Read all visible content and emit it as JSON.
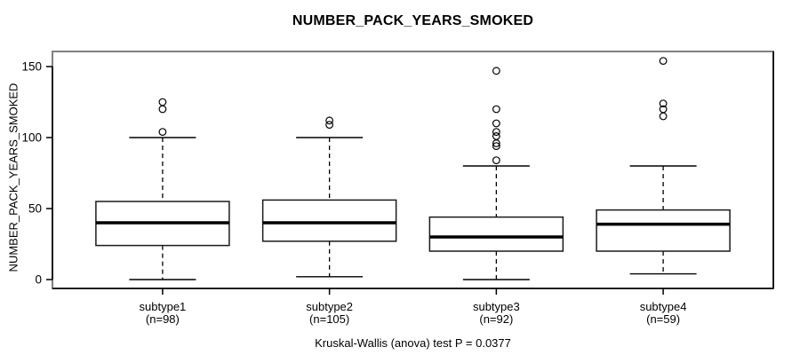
{
  "chart_data": {
    "type": "boxplot",
    "title": "NUMBER_PACK_YEARS_SMOKED",
    "ylabel": "NUMBER_PACK_YEARS_SMOKED",
    "xlabel": "",
    "caption": "Kruskal-Wallis (anova) test P = 0.0377",
    "yticks": [
      0,
      50,
      100,
      150
    ],
    "ylim": [
      -6,
      161
    ],
    "grid": false,
    "colors": {
      "box_border": "#1a1a1a",
      "median_line": "#000000",
      "whisker_line": "#000000",
      "outlier_stroke": "#000000",
      "plot_frame": "#808080",
      "axis_line": "#000000",
      "background": "#ffffff"
    },
    "groups": [
      {
        "label": "subtype1",
        "n_label": "(n=98)",
        "whisker_low": 0,
        "q1": 24,
        "median": 40,
        "q3": 55,
        "whisker_high": 100,
        "outliers": [
          104,
          120,
          125
        ]
      },
      {
        "label": "subtype2",
        "n_label": "(n=105)",
        "whisker_low": 2,
        "q1": 27,
        "median": 40,
        "q3": 56,
        "whisker_high": 100,
        "outliers": [
          109,
          112
        ]
      },
      {
        "label": "subtype3",
        "n_label": "(n=92)",
        "whisker_low": 0,
        "q1": 20,
        "median": 30,
        "q3": 44,
        "whisker_high": 80,
        "outliers": [
          84,
          94,
          96,
          101,
          104,
          110,
          120,
          147
        ]
      },
      {
        "label": "subtype4",
        "n_label": "(n=59)",
        "whisker_low": 4,
        "q1": 20,
        "median": 39,
        "q3": 49,
        "whisker_high": 80,
        "outliers": [
          115,
          120,
          124,
          154
        ]
      }
    ]
  }
}
